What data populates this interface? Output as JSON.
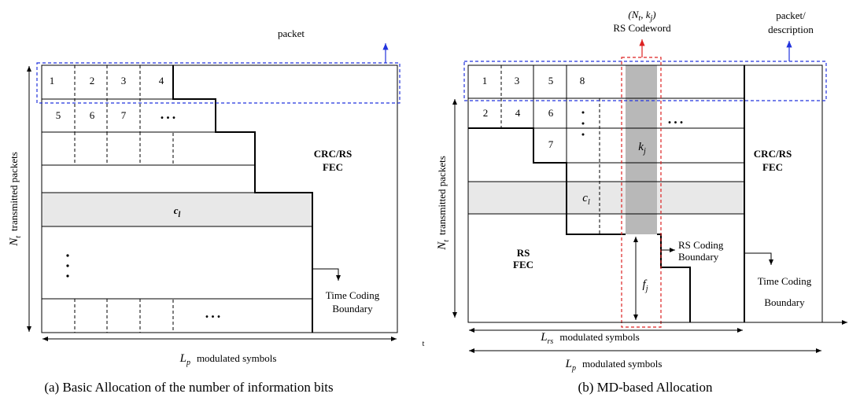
{
  "panel_a": {
    "packet_label": "packet",
    "row1_cells": [
      "1",
      "2",
      "3",
      "4"
    ],
    "row2_cells": [
      "5",
      "6",
      "7"
    ],
    "ellipsis": "...",
    "fec_label": [
      "CRC/RS",
      "FEC"
    ],
    "row_label": {
      "symbol": "c",
      "subscript": "l"
    },
    "boundary_label": [
      "Time Coding",
      "Boundary"
    ],
    "y_axis": {
      "symbol": "N",
      "subscript": "t",
      "text": "transmitted packets"
    },
    "x_axis": {
      "symbol": "L",
      "subscript": "p",
      "text": "modulated symbols",
      "end": "t"
    },
    "caption": "(a) Basic Allocation of the number of information bits"
  },
  "panel_b": {
    "codeword_label": {
      "open": "(N",
      "sub1": "t",
      "mid": ", k",
      "sub2": "j",
      "close": ")",
      "text": "RS Codeword"
    },
    "packet_label": [
      "packet/",
      "description"
    ],
    "row1_cells": [
      "1",
      "3",
      "5",
      "8"
    ],
    "row2_cells": [
      "2",
      "4",
      "6"
    ],
    "row3_cell": "7",
    "ellipsis": "...",
    "column_label": {
      "symbol": "k",
      "subscript": "j"
    },
    "row_label": {
      "symbol": "c",
      "subscript": "l"
    },
    "rs_fec_label": [
      "RS",
      "FEC"
    ],
    "crc_fec_label": [
      "CRC/RS",
      "FEC"
    ],
    "rs_boundary_label": [
      "RS Coding",
      "Boundary"
    ],
    "parity_label": {
      "symbol": "f",
      "subscript": "j"
    },
    "time_boundary_label": [
      "Time Coding",
      "Boundary"
    ],
    "y_axis": {
      "symbol": "N",
      "subscript": "t",
      "text": "transmitted packets"
    },
    "rs_axis": {
      "symbol": "L",
      "subscript": "rs",
      "text": "modulated symbols"
    },
    "x_axis": {
      "symbol": "L",
      "subscript": "p",
      "text": "modulated symbols"
    },
    "caption": "(b) MD-based Allocation"
  }
}
